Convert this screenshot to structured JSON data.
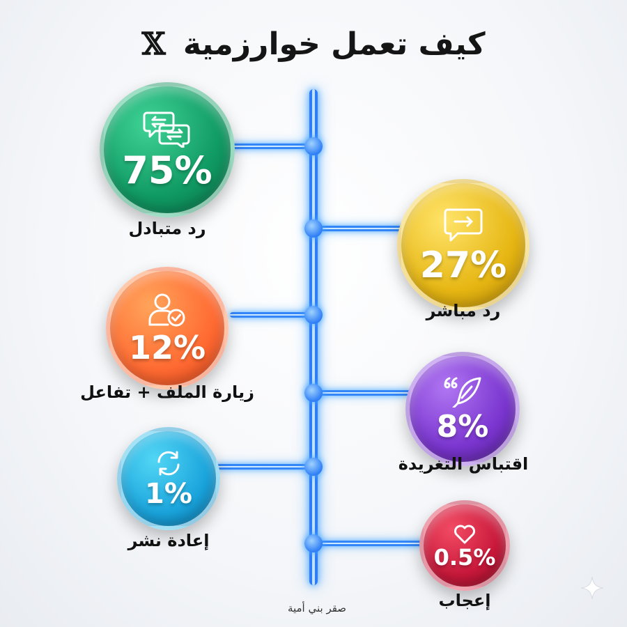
{
  "title": {
    "text": "كيف تعمل خوارزمية",
    "logo": "𝕏"
  },
  "items": [
    {
      "value": "75%",
      "label": "رد متبادل",
      "icon": "chat-exchange-icon",
      "color": "#109a63"
    },
    {
      "value": "27%",
      "label": "رد مباشر",
      "icon": "reply-arrow-icon",
      "color": "#e6b613"
    },
    {
      "value": "12%",
      "label": "زيارة الملف + تفاعل",
      "icon": "user-check-icon",
      "color": "#ff6a32"
    },
    {
      "value": "8%",
      "label": "اقتباس التغريدة",
      "icon": "quote-feather-icon",
      "color": "#7a35cf"
    },
    {
      "value": "1%",
      "label": "إعادة نشر",
      "icon": "repost-icon",
      "color": "#1aa4dc"
    },
    {
      "value": "0.5%",
      "label": "إعجاب",
      "icon": "heart-icon",
      "color": "#c8183a"
    }
  ],
  "credit": "صقر بني أمية",
  "accent": "#2e7cf6"
}
